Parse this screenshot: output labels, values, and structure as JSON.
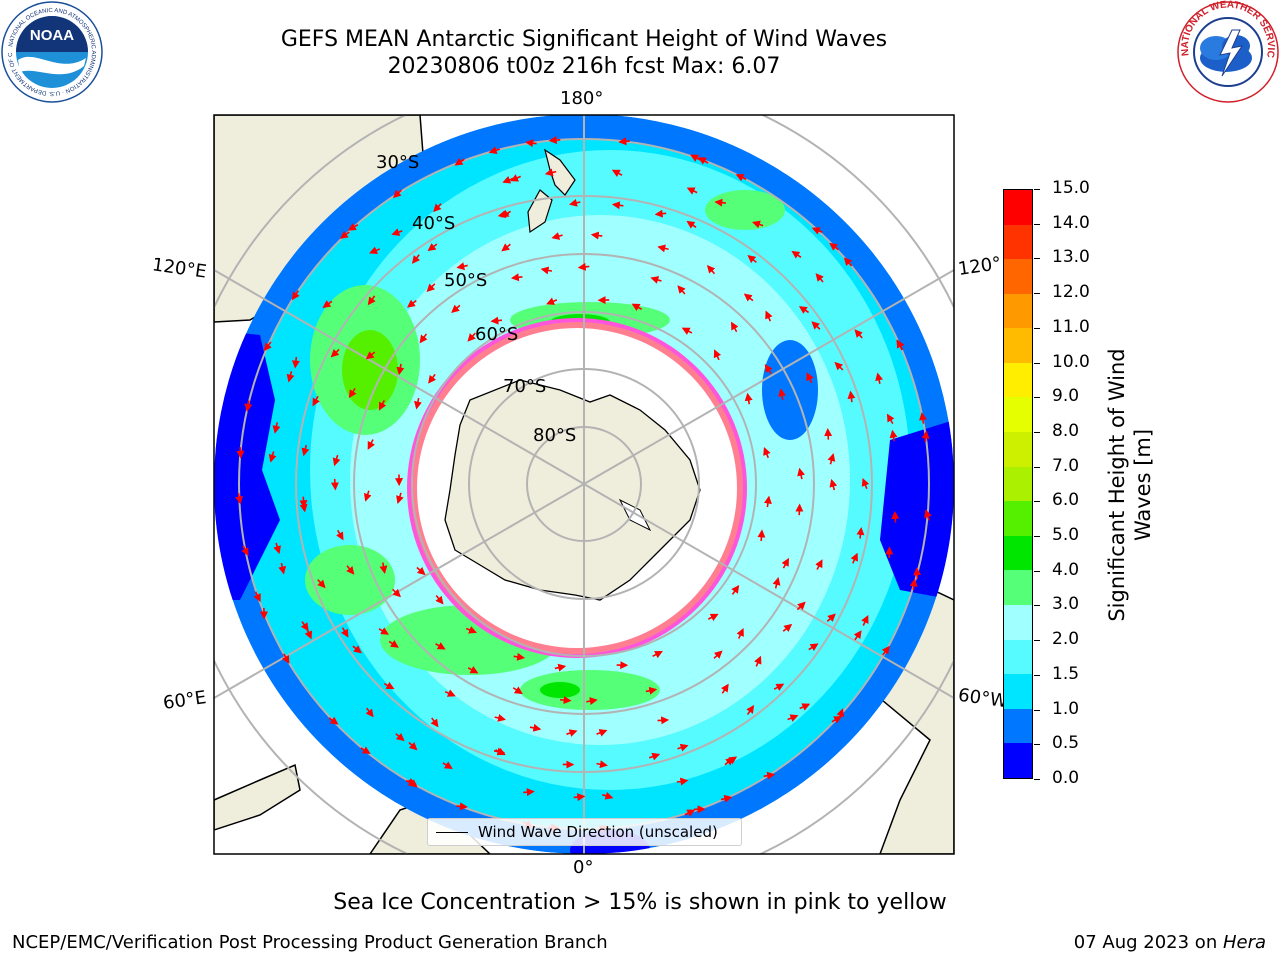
{
  "title_line1": "GEFS MEAN Antarctic Significant Height of Wind Waves",
  "title_line2": "20230806 t00z 216h fcst   Max: 6.07",
  "longitude_labels": {
    "top": "180°",
    "upper_left": "120°E",
    "upper_right": "120°",
    "lower_left": "60°E",
    "lower_right": "60°W",
    "bottom": "0°"
  },
  "latitude_labels": [
    "30°S",
    "40°S",
    "50°S",
    "60°S",
    "70°S",
    "80°S"
  ],
  "legend_label": "Wind Wave Direction (unscaled)",
  "colorbar": {
    "label_line1": "Significant Height of Wind",
    "label_line2": "Waves [m]",
    "ticks": [
      "0.0",
      "0.5",
      "1.0",
      "1.5",
      "2.0",
      "3.0",
      "4.0",
      "5.0",
      "6.0",
      "7.0",
      "8.0",
      "9.0",
      "10.0",
      "11.0",
      "12.0",
      "13.0",
      "14.0",
      "15.0"
    ],
    "colors": [
      "#0000ff",
      "#0077ff",
      "#00e5ff",
      "#55fbff",
      "#a0ffff",
      "#55ff77",
      "#00e600",
      "#55f000",
      "#aaf000",
      "#ccf000",
      "#e6ff00",
      "#ffee00",
      "#ffbb00",
      "#ff9900",
      "#ff6600",
      "#ff3300",
      "#ff0000"
    ]
  },
  "caption": "Sea Ice Concentration > 15% is shown in pink to yellow",
  "footer_left": "NCEP/EMC/Verification Post Processing Product Generation Branch",
  "footer_date": "07 Aug 2023 on ",
  "footer_machine": "Hera",
  "logos": {
    "noaa_text": "NOAA",
    "nws_ring_text": "NATIONAL WEATHER SERVICE"
  },
  "colors": {
    "land": "#efeedc",
    "arrow": "#ff0000",
    "grid": "#b3b3b3"
  }
}
